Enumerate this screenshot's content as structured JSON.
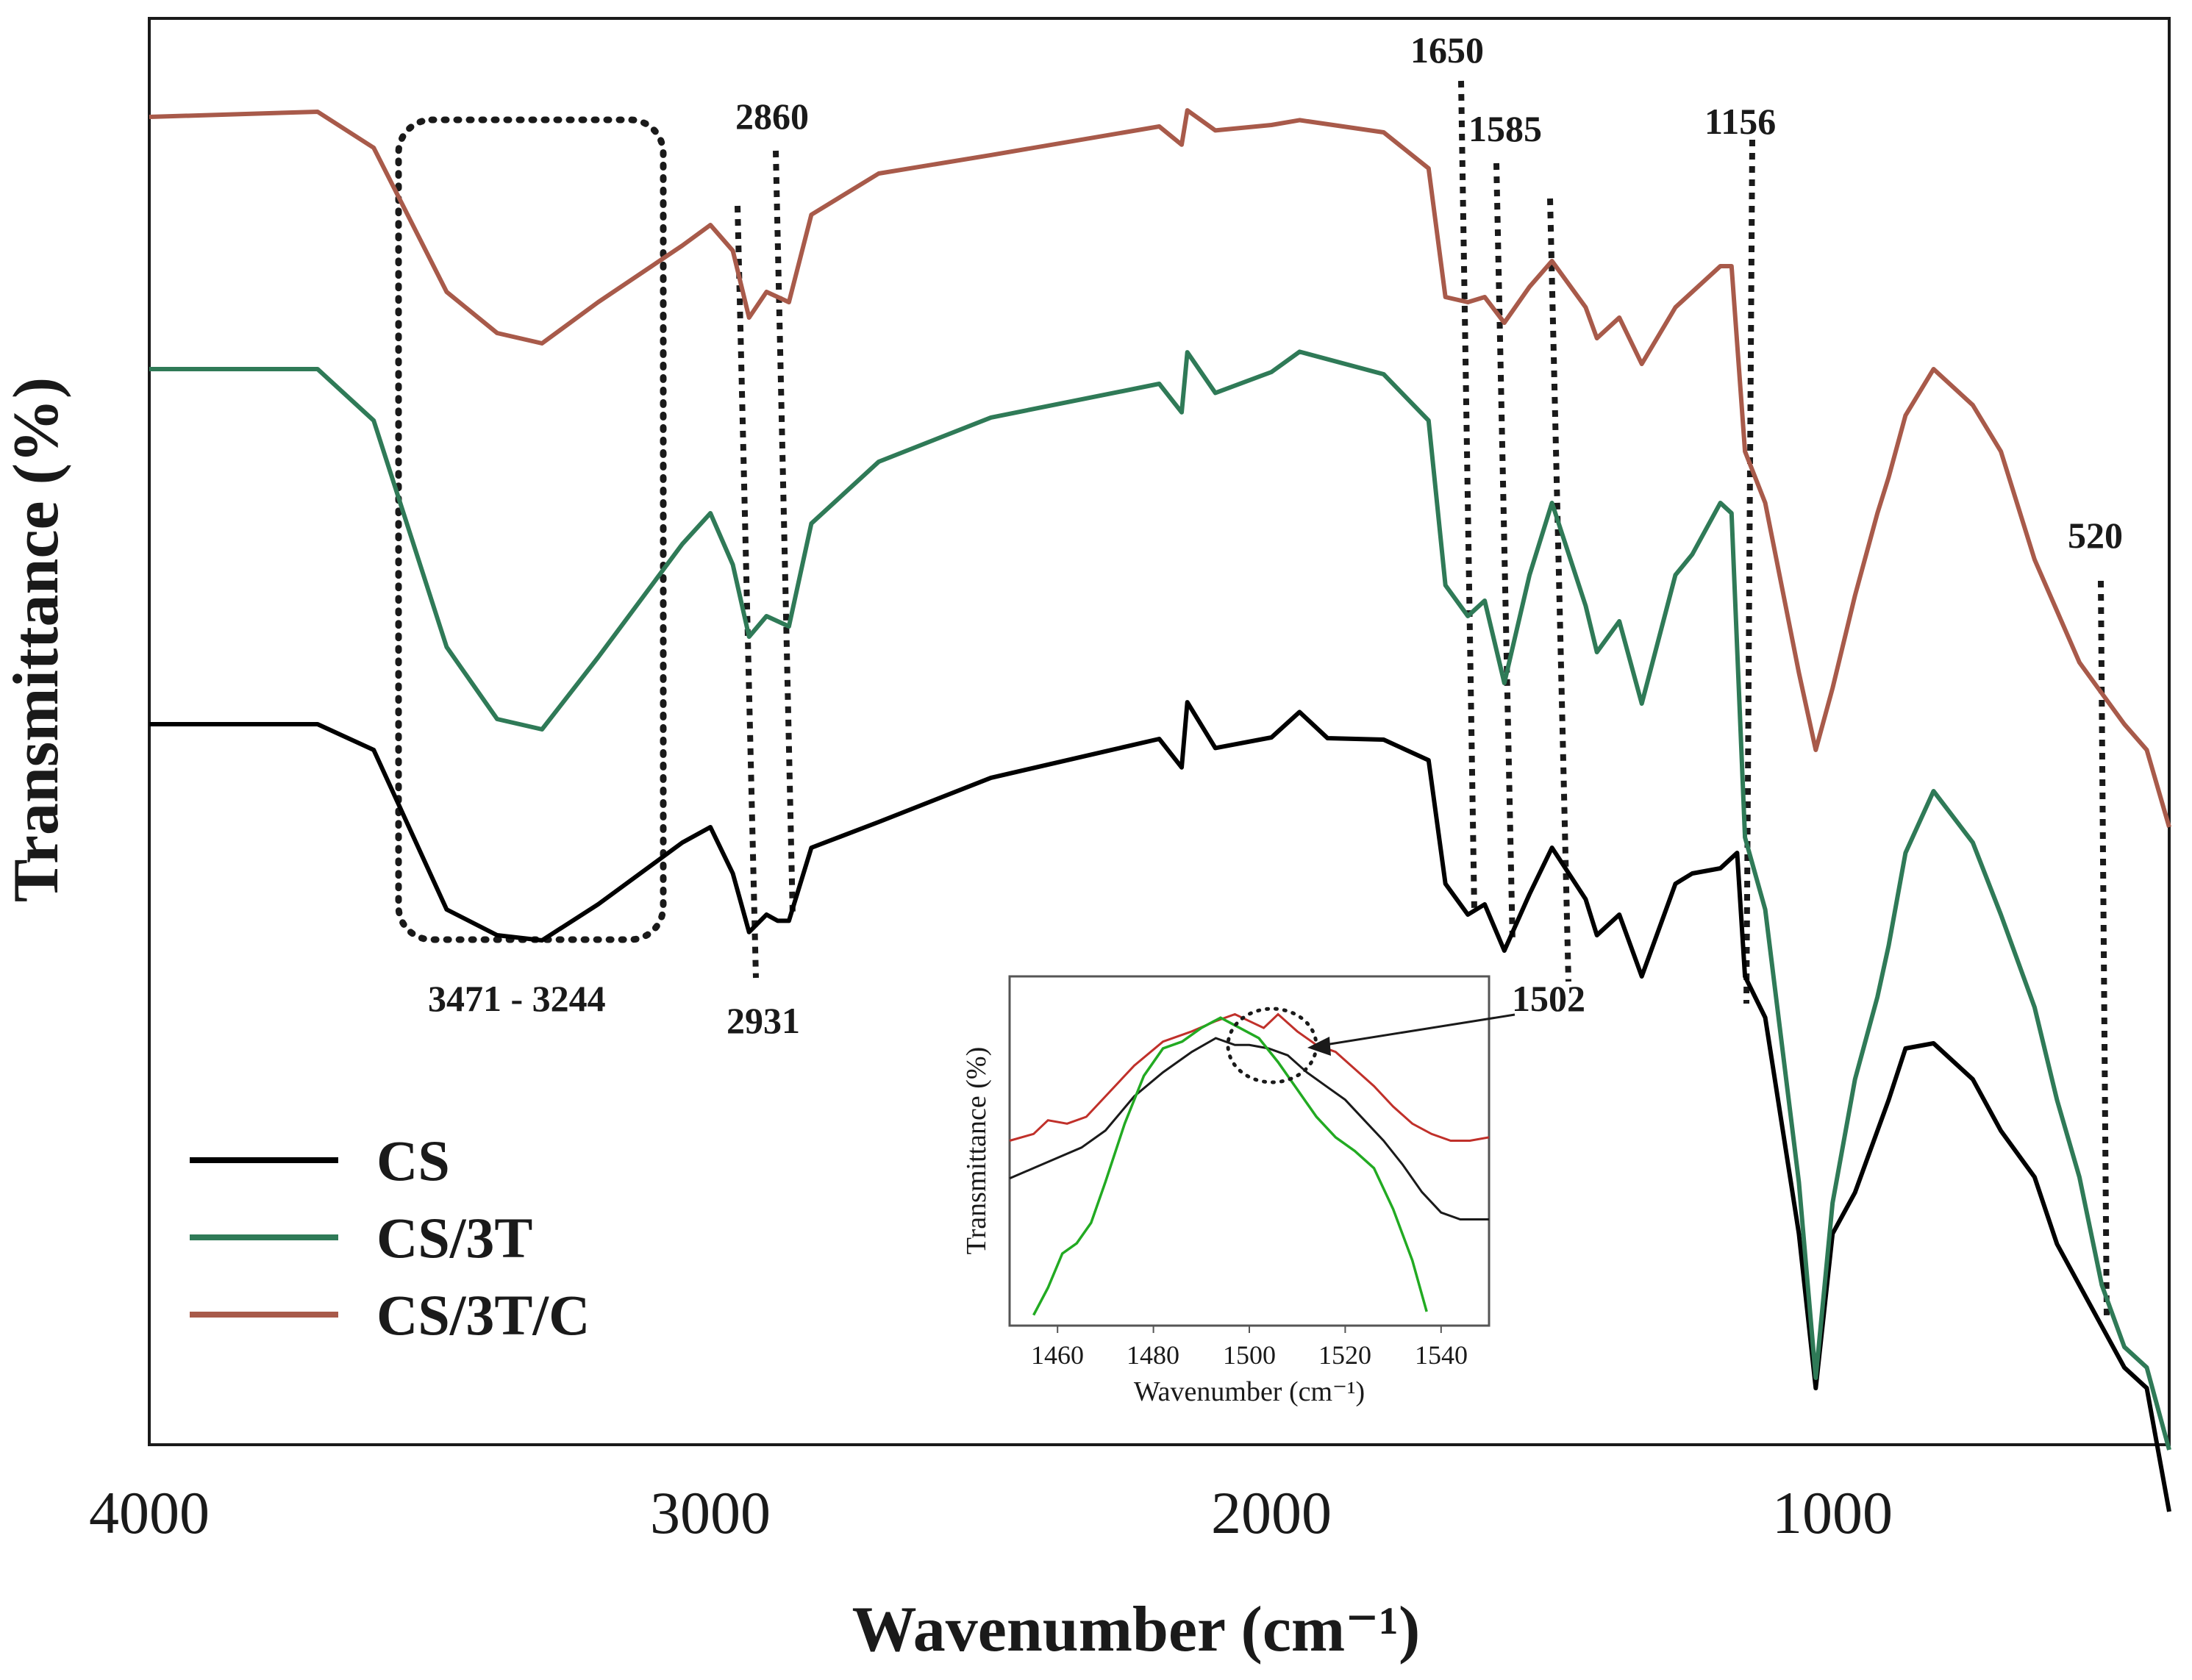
{
  "chart_data": {
    "type": "line",
    "title": "",
    "xlabel": "Wavenumber (cm⁻¹)",
    "ylabel": "Transmittance (%)",
    "xlim": [
      4000,
      400
    ],
    "x_ticks": [
      4000,
      3000,
      2000,
      1000
    ],
    "x_tick_labels": [
      "4000",
      "3000",
      "2000",
      "1000"
    ],
    "y_ticks_shown": false,
    "series": [
      {
        "name": "CS",
        "color": "#000000",
        "points": [
          [
            4000,
            0.05
          ],
          [
            3700,
            0.05
          ],
          [
            3600,
            0.3
          ],
          [
            3470,
            1.85
          ],
          [
            3380,
            2.1
          ],
          [
            3300,
            2.15
          ],
          [
            3200,
            1.8
          ],
          [
            3050,
            1.2
          ],
          [
            3000,
            1.05
          ],
          [
            2960,
            1.5
          ],
          [
            2931,
            2.07
          ],
          [
            2900,
            1.9
          ],
          [
            2880,
            1.96
          ],
          [
            2860,
            1.96
          ],
          [
            2820,
            1.25
          ],
          [
            2700,
            1.0
          ],
          [
            2500,
            0.55
          ],
          [
            2200,
            0.2
          ],
          [
            2160,
            0.45
          ],
          [
            2150,
            -0.15
          ],
          [
            2100,
            0.3
          ],
          [
            2000,
            0.2
          ],
          [
            1950,
            -0.05
          ],
          [
            1900,
            0.2
          ],
          [
            1800,
            0.2
          ],
          [
            1720,
            0.4
          ],
          [
            1690,
            1.6
          ],
          [
            1650,
            1.9
          ],
          [
            1620,
            1.8
          ],
          [
            1585,
            2.25
          ],
          [
            1540,
            1.7
          ],
          [
            1500,
            1.25
          ],
          [
            1440,
            1.75
          ],
          [
            1420,
            2.1
          ],
          [
            1380,
            1.9
          ],
          [
            1340,
            2.5
          ],
          [
            1280,
            1.6
          ],
          [
            1250,
            1.5
          ],
          [
            1200,
            1.45
          ],
          [
            1170,
            1.3
          ],
          [
            1156,
            2.5
          ],
          [
            1120,
            2.9
          ],
          [
            1060,
            5.0
          ],
          [
            1030,
            6.5
          ],
          [
            1000,
            5.0
          ],
          [
            960,
            4.6
          ],
          [
            920,
            4.0
          ],
          [
            900,
            3.7
          ],
          [
            870,
            3.2
          ],
          [
            820,
            3.15
          ],
          [
            750,
            3.5
          ],
          [
            700,
            4.0
          ],
          [
            640,
            4.45
          ],
          [
            600,
            5.1
          ],
          [
            560,
            5.5
          ],
          [
            520,
            5.9
          ],
          [
            480,
            6.3
          ],
          [
            440,
            6.5
          ],
          [
            400,
            7.7
          ]
        ]
      },
      {
        "name": "CS/3T",
        "color": "#2f7a57",
        "points": [
          [
            4000,
            -3.4
          ],
          [
            3700,
            -3.4
          ],
          [
            3600,
            -2.9
          ],
          [
            3470,
            -0.7
          ],
          [
            3380,
            0.0
          ],
          [
            3300,
            0.1
          ],
          [
            3200,
            -0.6
          ],
          [
            3050,
            -1.7
          ],
          [
            3000,
            -2.0
          ],
          [
            2960,
            -1.5
          ],
          [
            2931,
            -0.8
          ],
          [
            2900,
            -1.0
          ],
          [
            2860,
            -0.9
          ],
          [
            2820,
            -1.9
          ],
          [
            2700,
            -2.5
          ],
          [
            2500,
            -2.95
          ],
          [
            2200,
            -3.25
          ],
          [
            2160,
            -3.0
          ],
          [
            2150,
            -3.55
          ],
          [
            2100,
            -3.15
          ],
          [
            2000,
            -3.35
          ],
          [
            1950,
            -3.55
          ],
          [
            1800,
            -3.35
          ],
          [
            1720,
            -2.9
          ],
          [
            1690,
            -1.3
          ],
          [
            1650,
            -1.0
          ],
          [
            1620,
            -1.15
          ],
          [
            1585,
            -0.35
          ],
          [
            1540,
            -1.4
          ],
          [
            1500,
            -2.1
          ],
          [
            1440,
            -1.1
          ],
          [
            1420,
            -0.65
          ],
          [
            1380,
            -0.95
          ],
          [
            1340,
            -0.15
          ],
          [
            1280,
            -1.4
          ],
          [
            1250,
            -1.6
          ],
          [
            1200,
            -2.1
          ],
          [
            1180,
            -2.0
          ],
          [
            1156,
            1.15
          ],
          [
            1120,
            1.85
          ],
          [
            1060,
            4.5
          ],
          [
            1030,
            6.4
          ],
          [
            1000,
            4.7
          ],
          [
            960,
            3.5
          ],
          [
            920,
            2.7
          ],
          [
            900,
            2.2
          ],
          [
            870,
            1.3
          ],
          [
            820,
            0.7
          ],
          [
            750,
            1.2
          ],
          [
            700,
            1.9
          ],
          [
            640,
            2.8
          ],
          [
            600,
            3.7
          ],
          [
            560,
            4.45
          ],
          [
            520,
            5.5
          ],
          [
            480,
            6.1
          ],
          [
            440,
            6.3
          ],
          [
            400,
            7.1
          ]
        ]
      },
      {
        "name": "CS/3T/C",
        "color": "#a85a4a",
        "points": [
          [
            4000,
            -5.85
          ],
          [
            3700,
            -5.9
          ],
          [
            3600,
            -5.55
          ],
          [
            3470,
            -4.15
          ],
          [
            3380,
            -3.75
          ],
          [
            3300,
            -3.65
          ],
          [
            3200,
            -4.05
          ],
          [
            3050,
            -4.6
          ],
          [
            3000,
            -4.8
          ],
          [
            2960,
            -4.55
          ],
          [
            2931,
            -3.9
          ],
          [
            2900,
            -4.15
          ],
          [
            2860,
            -4.05
          ],
          [
            2820,
            -4.9
          ],
          [
            2700,
            -5.3
          ],
          [
            2500,
            -5.5
          ],
          [
            2200,
            -5.75
          ],
          [
            2160,
            -5.6
          ],
          [
            2150,
            -5.9
          ],
          [
            2100,
            -5.7
          ],
          [
            2000,
            -5.75
          ],
          [
            1950,
            -5.8
          ],
          [
            1800,
            -5.7
          ],
          [
            1720,
            -5.35
          ],
          [
            1690,
            -4.1
          ],
          [
            1650,
            -4.05
          ],
          [
            1620,
            -4.1
          ],
          [
            1585,
            -3.85
          ],
          [
            1540,
            -4.2
          ],
          [
            1500,
            -4.45
          ],
          [
            1440,
            -4.0
          ],
          [
            1420,
            -3.7
          ],
          [
            1380,
            -3.9
          ],
          [
            1340,
            -3.45
          ],
          [
            1280,
            -4.0
          ],
          [
            1250,
            -4.15
          ],
          [
            1200,
            -4.4
          ],
          [
            1180,
            -4.4
          ],
          [
            1156,
            -2.6
          ],
          [
            1120,
            -2.1
          ],
          [
            1060,
            -0.45
          ],
          [
            1030,
            0.3
          ],
          [
            1000,
            -0.3
          ],
          [
            960,
            -1.2
          ],
          [
            920,
            -2.0
          ],
          [
            900,
            -2.35
          ],
          [
            870,
            -2.95
          ],
          [
            820,
            -3.4
          ],
          [
            750,
            -3.05
          ],
          [
            700,
            -2.6
          ],
          [
            640,
            -1.55
          ],
          [
            600,
            -1.05
          ],
          [
            560,
            -0.55
          ],
          [
            520,
            -0.25
          ],
          [
            480,
            0.05
          ],
          [
            440,
            0.3
          ],
          [
            400,
            1.05
          ]
        ]
      }
    ],
    "annotations": [
      {
        "label": "3471 - 3244",
        "type": "dotted-box"
      },
      {
        "label": "2931",
        "x": 2931
      },
      {
        "label": "2860",
        "x": 2860
      },
      {
        "label": "1650",
        "x": 1650
      },
      {
        "label": "1585",
        "x": 1585
      },
      {
        "label": "1502",
        "x": 1502
      },
      {
        "label": "1156",
        "x": 1156
      },
      {
        "label": "520",
        "x": 520
      }
    ],
    "inset": {
      "type": "line",
      "xlabel": "Wavenumber (cm⁻¹)",
      "ylabel": "Transmittance (%)",
      "xlim": [
        1450,
        1550
      ],
      "x_ticks": [
        1460,
        1480,
        1500,
        1520,
        1540
      ],
      "x_tick_labels": [
        "1460",
        "1480",
        "1500",
        "1520",
        "1540"
      ],
      "ylim": [
        0,
        10
      ],
      "highlight_x": 1502,
      "series": [
        {
          "name": "red",
          "color": "#c0302a",
          "points": [
            [
              1450,
              5.3
            ],
            [
              1455,
              5.5
            ],
            [
              1458,
              5.9
            ],
            [
              1462,
              5.8
            ],
            [
              1466,
              6.0
            ],
            [
              1470,
              6.6
            ],
            [
              1476,
              7.5
            ],
            [
              1482,
              8.2
            ],
            [
              1488,
              8.5
            ],
            [
              1493,
              8.8
            ],
            [
              1497,
              9.0
            ],
            [
              1500,
              8.8
            ],
            [
              1503,
              8.6
            ],
            [
              1506,
              9.0
            ],
            [
              1510,
              8.5
            ],
            [
              1514,
              8.1
            ],
            [
              1518,
              7.9
            ],
            [
              1522,
              7.4
            ],
            [
              1526,
              6.9
            ],
            [
              1530,
              6.3
            ],
            [
              1534,
              5.8
            ],
            [
              1538,
              5.5
            ],
            [
              1542,
              5.3
            ],
            [
              1546,
              5.3
            ],
            [
              1550,
              5.4
            ]
          ]
        },
        {
          "name": "black",
          "color": "#1a1a1a",
          "points": [
            [
              1450,
              4.2
            ],
            [
              1455,
              4.5
            ],
            [
              1460,
              4.8
            ],
            [
              1465,
              5.1
            ],
            [
              1470,
              5.6
            ],
            [
              1476,
              6.6
            ],
            [
              1482,
              7.3
            ],
            [
              1488,
              7.9
            ],
            [
              1493,
              8.3
            ],
            [
              1497,
              8.1
            ],
            [
              1500,
              8.1
            ],
            [
              1504,
              8.0
            ],
            [
              1508,
              7.8
            ],
            [
              1512,
              7.3
            ],
            [
              1516,
              6.9
            ],
            [
              1520,
              6.5
            ],
            [
              1524,
              5.9
            ],
            [
              1528,
              5.3
            ],
            [
              1532,
              4.6
            ],
            [
              1536,
              3.8
            ],
            [
              1540,
              3.2
            ],
            [
              1544,
              3.0
            ],
            [
              1550,
              3.0
            ]
          ]
        },
        {
          "name": "green",
          "color": "#22aa22",
          "points": [
            [
              1455,
              0.2
            ],
            [
              1458,
              1.0
            ],
            [
              1461,
              2.0
            ],
            [
              1464,
              2.3
            ],
            [
              1467,
              2.9
            ],
            [
              1470,
              4.1
            ],
            [
              1474,
              5.8
            ],
            [
              1478,
              7.2
            ],
            [
              1482,
              8.0
            ],
            [
              1486,
              8.2
            ],
            [
              1490,
              8.6
            ],
            [
              1494,
              8.9
            ],
            [
              1498,
              8.6
            ],
            [
              1502,
              8.3
            ],
            [
              1506,
              7.6
            ],
            [
              1510,
              6.8
            ],
            [
              1514,
              6.0
            ],
            [
              1518,
              5.4
            ],
            [
              1522,
              5.0
            ],
            [
              1526,
              4.5
            ],
            [
              1530,
              3.3
            ],
            [
              1534,
              1.8
            ],
            [
              1537,
              0.3
            ]
          ]
        }
      ]
    }
  }
}
